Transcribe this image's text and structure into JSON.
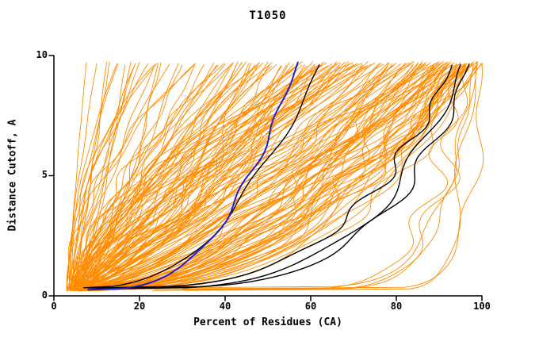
{
  "chart_data": {
    "type": "line",
    "title": "T1050",
    "xlabel": "Percent of Residues (CA)",
    "ylabel": "Distance Cutoff, A",
    "xlim": [
      0,
      100
    ],
    "ylim": [
      0,
      10
    ],
    "x_ticks": [
      0,
      20,
      40,
      60,
      80,
      100
    ],
    "y_ticks": [
      0,
      5,
      10
    ],
    "grid": false,
    "legend": false,
    "colors": {
      "ensemble": "#ff8c00",
      "highlight": "#000000",
      "reference": "#2020c8",
      "axis": "#000000",
      "background": "#ffffff"
    },
    "curve_format": "[x_percent_at_bottom, x_percent_at_top, shape_exponent] with x(y)=x0+(x1-x0)*((y-y0)/(y1-y0))^p, y from ~0.3 to ~9.7",
    "orange_curves": [
      [
        3,
        10,
        1.3
      ],
      [
        4,
        13,
        0.9
      ],
      [
        3,
        15,
        1.6
      ],
      [
        5,
        18,
        0.8
      ],
      [
        4,
        20,
        1.2
      ],
      [
        3,
        22,
        1.7
      ],
      [
        6,
        25,
        0.7
      ],
      [
        4,
        27,
        1.4
      ],
      [
        5,
        30,
        1.0
      ],
      [
        3,
        33,
        1.9
      ],
      [
        6,
        35,
        0.9
      ],
      [
        4,
        24,
        2.3
      ],
      [
        4,
        38,
        1.0
      ],
      [
        5,
        40,
        1.3
      ],
      [
        3,
        43,
        0.7
      ],
      [
        6,
        45,
        1.1
      ],
      [
        4,
        48,
        1.5
      ],
      [
        5,
        50,
        0.8
      ],
      [
        3,
        52,
        1.2
      ],
      [
        7,
        55,
        0.6
      ],
      [
        4,
        57,
        1.35
      ],
      [
        5,
        60,
        0.95
      ],
      [
        6,
        62,
        0.7
      ],
      [
        3,
        64,
        1.55
      ],
      [
        4,
        66,
        1.05
      ],
      [
        5,
        68,
        0.8
      ],
      [
        6,
        70,
        1.25
      ],
      [
        4,
        72,
        1.7
      ],
      [
        5,
        74,
        0.6
      ],
      [
        3,
        75,
        1.15
      ],
      [
        6,
        42,
        1.8
      ],
      [
        4,
        46,
        0.55
      ],
      [
        5,
        51,
        1.45
      ],
      [
        3,
        56,
        0.85
      ],
      [
        7,
        61,
        1.05
      ],
      [
        4,
        65,
        1.3
      ],
      [
        5,
        69,
        0.75
      ],
      [
        6,
        73,
        1.5
      ],
      [
        3,
        47,
        0.95
      ],
      [
        4,
        53,
        0.65
      ],
      [
        5,
        58,
        1.2
      ],
      [
        6,
        63,
        0.9
      ],
      [
        3,
        67,
        0.7
      ],
      [
        4,
        71,
        1.1
      ],
      [
        5,
        44,
        1.0
      ],
      [
        5,
        76,
        0.85
      ],
      [
        4,
        78,
        0.6
      ],
      [
        6,
        80,
        1.0
      ],
      [
        3,
        82,
        0.5
      ],
      [
        5,
        84,
        0.9
      ],
      [
        4,
        86,
        0.48
      ],
      [
        6,
        88,
        0.72
      ],
      [
        3,
        90,
        1.1
      ],
      [
        5,
        92,
        0.55
      ],
      [
        4,
        94,
        0.8
      ],
      [
        6,
        96,
        0.42
      ],
      [
        3,
        98,
        0.66
      ],
      [
        5,
        100,
        0.52
      ],
      [
        4,
        77,
        1.2
      ],
      [
        6,
        79,
        0.5
      ],
      [
        3,
        81,
        0.78
      ],
      [
        5,
        83,
        1.05
      ],
      [
        4,
        85,
        0.6
      ],
      [
        6,
        87,
        0.9
      ],
      [
        3,
        89,
        0.5
      ],
      [
        5,
        91,
        0.7
      ],
      [
        4,
        93,
        1.0
      ],
      [
        6,
        95,
        0.46
      ],
      [
        3,
        97,
        0.62
      ],
      [
        5,
        99,
        0.85
      ],
      [
        8,
        94,
        0.4
      ],
      [
        7,
        96,
        0.5
      ],
      [
        9,
        92,
        0.45
      ],
      [
        8,
        90,
        0.58
      ],
      [
        7,
        98,
        0.38
      ],
      [
        9,
        96,
        0.55
      ],
      [
        8,
        86,
        0.66
      ],
      [
        7,
        100,
        0.5
      ],
      [
        9,
        88,
        0.44
      ],
      [
        8,
        99,
        0.35
      ],
      [
        7,
        91,
        0.52
      ],
      [
        9,
        95,
        0.4
      ],
      [
        8,
        97,
        0.47
      ],
      [
        23,
        96,
        0.1
      ],
      [
        25,
        99,
        0.12
      ],
      [
        30,
        100,
        0.06
      ]
    ],
    "black_curves": [
      [
        8,
        93,
        0.3
      ],
      [
        9,
        95,
        0.27
      ],
      [
        10,
        97,
        0.25
      ],
      [
        7,
        62,
        0.42
      ]
    ],
    "blue_curves": [
      [
        8,
        57,
        0.35
      ]
    ]
  }
}
